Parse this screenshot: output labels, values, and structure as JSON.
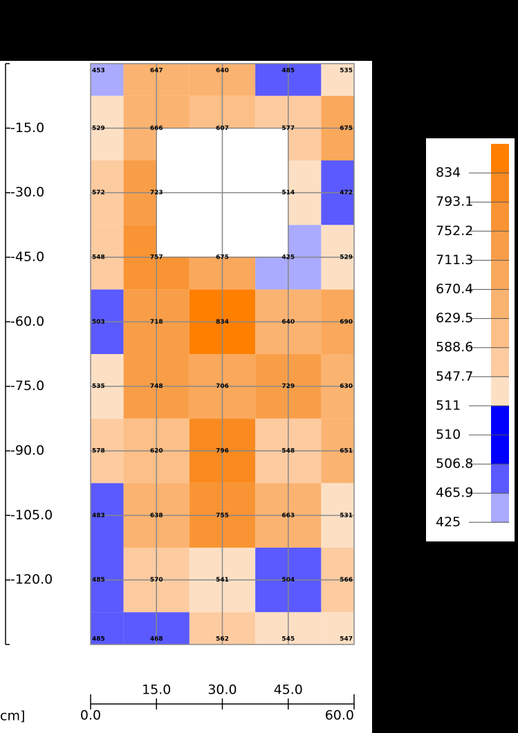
{
  "chart_data": {
    "type": "contour",
    "x_label": "cm]",
    "x": [
      0,
      15,
      30,
      45,
      60
    ],
    "y": [
      0,
      -15,
      -30,
      -45,
      -60,
      -75,
      -90,
      -105,
      -120,
      -135
    ],
    "z": [
      [
        453,
        647,
        640,
        485,
        535
      ],
      [
        529,
        666,
        607,
        577,
        675
      ],
      [
        572,
        723,
        null,
        514,
        472
      ],
      [
        548,
        757,
        675,
        425,
        529
      ],
      [
        503,
        718,
        834,
        640,
        690
      ],
      [
        535,
        748,
        706,
        729,
        630
      ],
      [
        578,
        620,
        796,
        548,
        651
      ],
      [
        483,
        638,
        755,
        663,
        531
      ],
      [
        485,
        570,
        541,
        504,
        566
      ],
      [
        485,
        468,
        562,
        545,
        547
      ]
    ],
    "xlim": [
      0,
      60
    ],
    "ylim": [
      -135,
      0
    ],
    "xticks": [
      {
        "value": 0,
        "label": "0.0"
      },
      {
        "value": 15,
        "label": "15.0"
      },
      {
        "value": 30,
        "label": "30.0"
      },
      {
        "value": 45,
        "label": "45.0"
      },
      {
        "value": 60,
        "label": "60.0"
      }
    ],
    "yticks": [
      {
        "value": -15,
        "label": "-15.0"
      },
      {
        "value": -30,
        "label": "-30.0"
      },
      {
        "value": -45,
        "label": "-45.0"
      },
      {
        "value": -60,
        "label": "-60.0"
      },
      {
        "value": -75,
        "label": "-75.0"
      },
      {
        "value": -90,
        "label": "-90.0"
      },
      {
        "value": -105,
        "label": "-105.0"
      },
      {
        "value": -120,
        "label": "-120.0"
      }
    ],
    "grid": true,
    "legend_ticks": [
      834,
      793.1,
      752.2,
      711.3,
      670.4,
      629.5,
      588.6,
      547.7,
      511,
      510,
      506.8,
      465.9,
      425
    ],
    "band_colors": [
      "#ff7f00",
      "#fa8a20",
      "#f99434",
      "#f99e48",
      "#faa85c",
      "#fbb371",
      "#fcbf88",
      "#fdcba0",
      "#fde0c4",
      "#0000ff",
      "#0000ff",
      "#5a5aff",
      "#aaaaff"
    ]
  }
}
